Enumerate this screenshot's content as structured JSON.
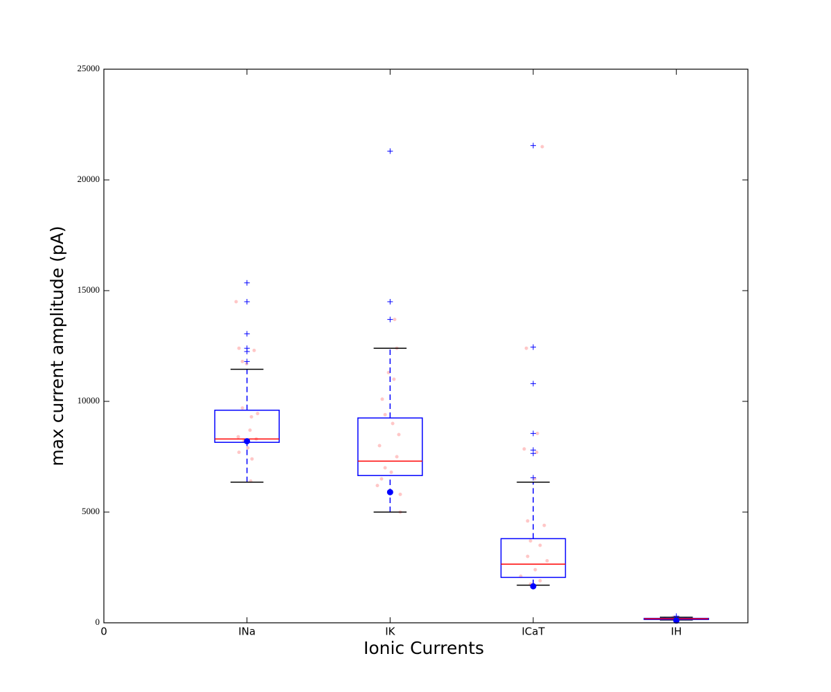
{
  "chart_data": {
    "type": "box",
    "x_label": "Ionic Currents",
    "y_label": "max current amplitude (pA)",
    "xlim": [
      0,
      4.5
    ],
    "xticks": [
      0,
      {
        "value": 1,
        "label": "INa"
      },
      {
        "value": 2,
        "label": "IK"
      },
      {
        "value": 3,
        "label": "ICaT"
      },
      {
        "value": 4,
        "label": "IH"
      }
    ],
    "ylim": [
      0,
      25000
    ],
    "yticks": [
      0,
      5000,
      10000,
      15000,
      20000,
      25000
    ],
    "box_color": "#0000ff",
    "median_color": "#ff0000",
    "cap_color": "#000000",
    "point_color": "#ff0000",
    "mean_color": "#0000ff",
    "boxes": [
      {
        "position": 1,
        "whisker_low": 6350,
        "q1": 8150,
        "median": 8300,
        "q3": 9600,
        "whisker_high": 11450,
        "mean": 8200,
        "outliers": [
          15350,
          14500,
          13050,
          12400,
          12250,
          11800
        ],
        "points_x": [
          0.924,
          0.944,
          1.05,
          0.968,
          0.997,
          0.968,
          1.074,
          1.031,
          1.021,
          0.939,
          1.065,
          0.977,
          1.006,
          0.944,
          1.035,
          1.026
        ],
        "points_y": [
          14500,
          12400,
          12300,
          11800,
          11700,
          9700,
          9450,
          9300,
          8700,
          8400,
          8300,
          8200,
          7900,
          7700,
          7400,
          6400
        ]
      },
      {
        "position": 2,
        "whisker_low": 5000,
        "q1": 6650,
        "median": 7300,
        "q3": 9250,
        "whisker_high": 12400,
        "mean": 5900,
        "outliers": [
          21300,
          14500,
          13700
        ],
        "points_x": [
          2.032,
          2.047,
          1.989,
          2.027,
          1.945,
          1.965,
          2.018,
          2.061,
          1.926,
          2.047,
          1.965,
          2.008,
          1.94,
          1.911,
          2.071,
          2.071
        ],
        "points_y": [
          13700,
          12400,
          11300,
          11000,
          10100,
          9400,
          9000,
          8500,
          8000,
          7500,
          7000,
          6800,
          6500,
          6200,
          5800,
          5000
        ]
      },
      {
        "position": 3,
        "whisker_low": 1700,
        "q1": 2050,
        "median": 2650,
        "q3": 3800,
        "whisker_high": 6350,
        "mean": 1650,
        "outliers": [
          21550,
          12450,
          10800,
          8550,
          7800,
          7650,
          6550
        ],
        "points_x": [
          3.063,
          2.952,
          3.029,
          2.937,
          3.024,
          3.01,
          2.961,
          3.077,
          2.981,
          3.048,
          2.961,
          3.097,
          3.014,
          2.913,
          3.048,
          2.981
        ],
        "points_y": [
          21500,
          12400,
          8550,
          7850,
          7700,
          6500,
          4600,
          4400,
          3700,
          3500,
          3000,
          2800,
          2400,
          2100,
          1900,
          1750
        ]
      },
      {
        "position": 4,
        "whisker_low": 130,
        "q1": 150,
        "median": 180,
        "q3": 200,
        "whisker_high": 250,
        "mean": 100,
        "outliers": [
          300
        ],
        "points_x": [
          3.919,
          4.016,
          4.065,
          3.977
        ],
        "points_y": [
          200,
          230,
          180,
          250
        ]
      }
    ]
  }
}
